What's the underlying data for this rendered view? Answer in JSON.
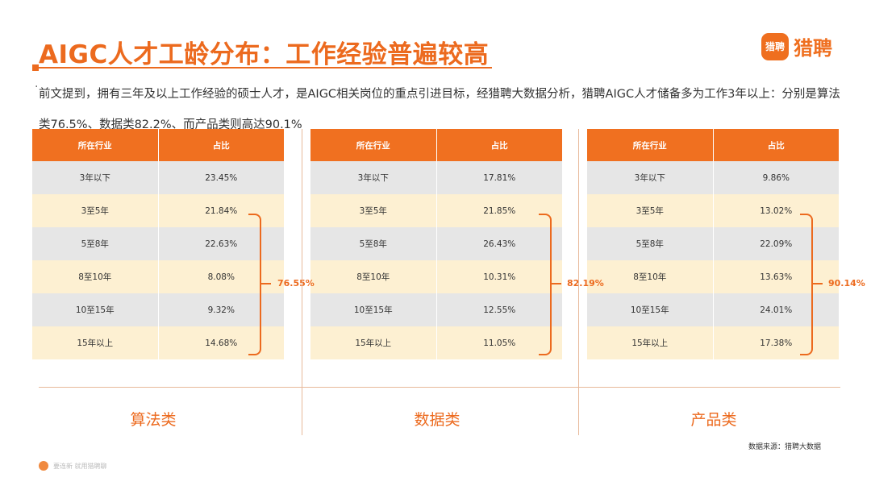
{
  "title": "AIGC人才工龄分布：工作经验普遍较高",
  "logo": {
    "mark": "猎聘",
    "text": "猎聘"
  },
  "intro": {
    "bullet": "·",
    "text": "前文提到，拥有三年及以上工作经验的硕士人才，是AIGC相关岗位的重点引进目标，经猎聘大数据分析，猎聘AIGC人才储备多为工作3年以上：分别是算法类76.5%、数据类82.2%、而产品类则高达90.1%"
  },
  "tables": [
    {
      "headers": [
        "所在行业",
        "占比"
      ],
      "rows": [
        [
          "3年以下",
          "23.45%"
        ],
        [
          "3至5年",
          "21.84%"
        ],
        [
          "5至8年",
          "22.63%"
        ],
        [
          "8至10年",
          "8.08%"
        ],
        [
          "10至15年",
          "9.32%"
        ],
        [
          "15年以上",
          "14.68%"
        ]
      ],
      "bracket_total": "76.55%",
      "category": "算法类"
    },
    {
      "headers": [
        "所在行业",
        "占比"
      ],
      "rows": [
        [
          "3年以下",
          "17.81%"
        ],
        [
          "3至5年",
          "21.85%"
        ],
        [
          "5至8年",
          "26.43%"
        ],
        [
          "8至10年",
          "10.31%"
        ],
        [
          "10至15年",
          "12.55%"
        ],
        [
          "15年以上",
          "11.05%"
        ]
      ],
      "bracket_total": "82.19%",
      "category": "数据类"
    },
    {
      "headers": [
        "所在行业",
        "占比"
      ],
      "rows": [
        [
          "3年以下",
          "9.86%"
        ],
        [
          "3至5年",
          "13.02%"
        ],
        [
          "5至8年",
          "22.09%"
        ],
        [
          "8至10年",
          "13.63%"
        ],
        [
          "10至15年",
          "24.01%"
        ],
        [
          "15年以上",
          "17.38%"
        ]
      ],
      "bracket_total": "90.14%",
      "category": "产品类"
    }
  ],
  "source": "数据来源：猎聘大数据",
  "footer": "要连新 就用猎聘聊",
  "colors": {
    "accent": "#ec6a1e",
    "header": "#f07020",
    "row_gray": "#e6e6e6",
    "row_cream": "#fdf0d2"
  }
}
